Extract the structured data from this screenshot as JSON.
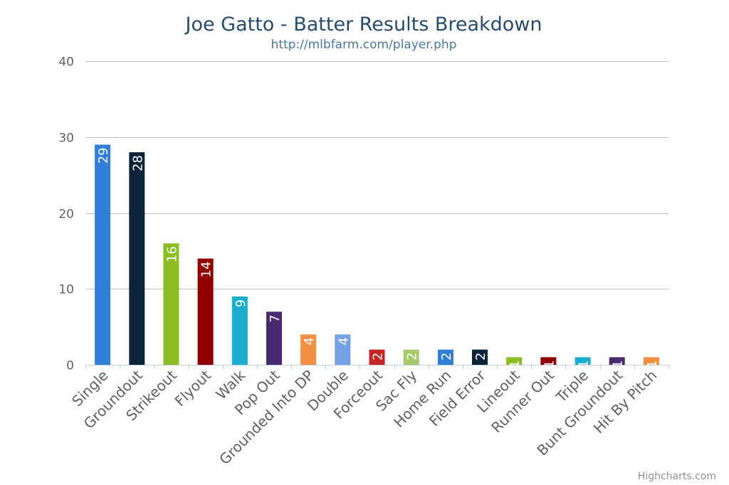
{
  "chart_data": {
    "type": "bar",
    "title": "Joe Gatto - Batter Results Breakdown",
    "subtitle": "http://mlbfarm.com/player.php",
    "categories": [
      "Single",
      "Groundout",
      "Strikeout",
      "Flyout",
      "Walk",
      "Pop Out",
      "Grounded Into DP",
      "Double",
      "Forceout",
      "Sac Fly",
      "Home Run",
      "Field Error",
      "Lineout",
      "Runner Out",
      "Triple",
      "Bunt Groundout",
      "Hit By Pitch"
    ],
    "values": [
      29,
      28,
      16,
      14,
      9,
      7,
      4,
      4,
      2,
      2,
      2,
      2,
      1,
      1,
      1,
      1,
      1
    ],
    "colors": [
      "#2f7ed8",
      "#0d233a",
      "#8bbc21",
      "#910000",
      "#1aadce",
      "#492970",
      "#f28f43",
      "#77a1e5",
      "#c42525",
      "#a6c96a",
      "#2f7ed8",
      "#0d233a",
      "#8bbc21",
      "#910000",
      "#1aadce",
      "#492970",
      "#f28f43"
    ],
    "ylim": [
      0,
      40
    ],
    "yticks": [
      0,
      10,
      20,
      30,
      40
    ],
    "grid": true,
    "legend": "none"
  },
  "credits": "Highcharts.com"
}
